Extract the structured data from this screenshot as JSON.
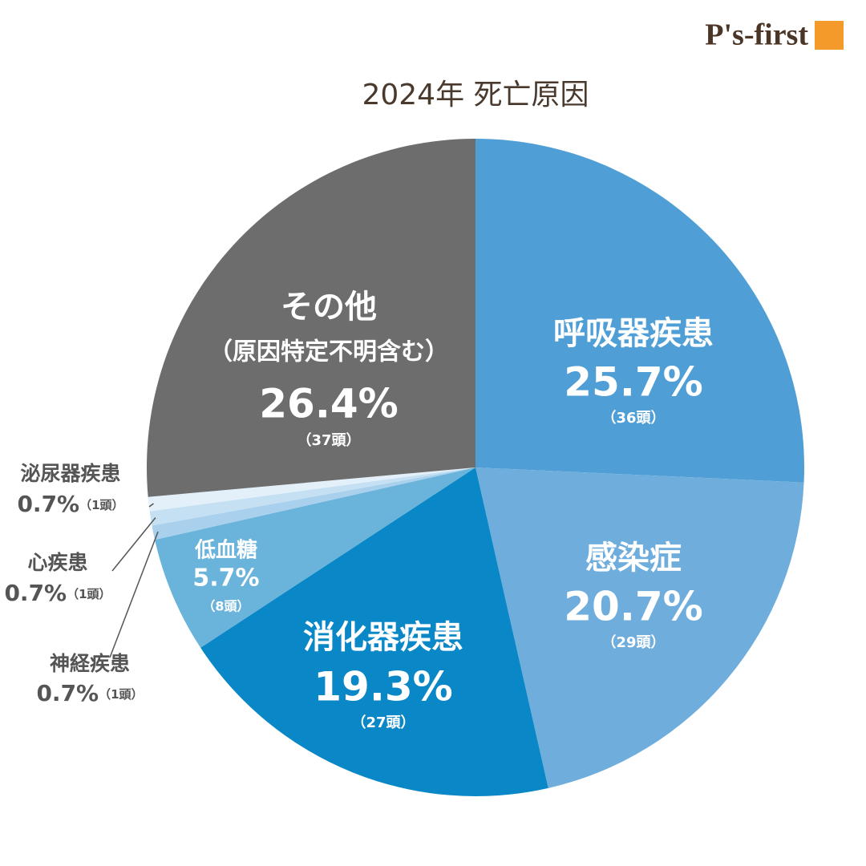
{
  "logo": "P's-first",
  "chart_data": {
    "type": "pie",
    "title": "2024年 死亡原因",
    "categories": [
      "呼吸器疾患",
      "感染症",
      "消化器疾患",
      "低血糖",
      "神経疾患",
      "心疾患",
      "泌尿器疾患",
      "その他"
    ],
    "category_notes": [
      null,
      null,
      null,
      null,
      null,
      null,
      null,
      "（原因特定不明含む）"
    ],
    "values": [
      25.7,
      20.7,
      19.3,
      5.7,
      0.7,
      0.7,
      0.7,
      26.4
    ],
    "value_labels": [
      "25.7%",
      "20.7%",
      "19.3%",
      "5.7%",
      "0.7%",
      "0.7%",
      "0.7%",
      "26.4%"
    ],
    "count_labels": [
      "（36頭）",
      "（29頭）",
      "（27頭）",
      "（8頭）",
      "（1頭）",
      "（1頭）",
      "（1頭）",
      "（37頭）"
    ],
    "colors": [
      "#4f9fd6",
      "#6faddd",
      "#0a87c6",
      "#6ab4dc",
      "#a9d0ec",
      "#c5e0f3",
      "#e3f0fa",
      "#6d6d6d"
    ]
  }
}
